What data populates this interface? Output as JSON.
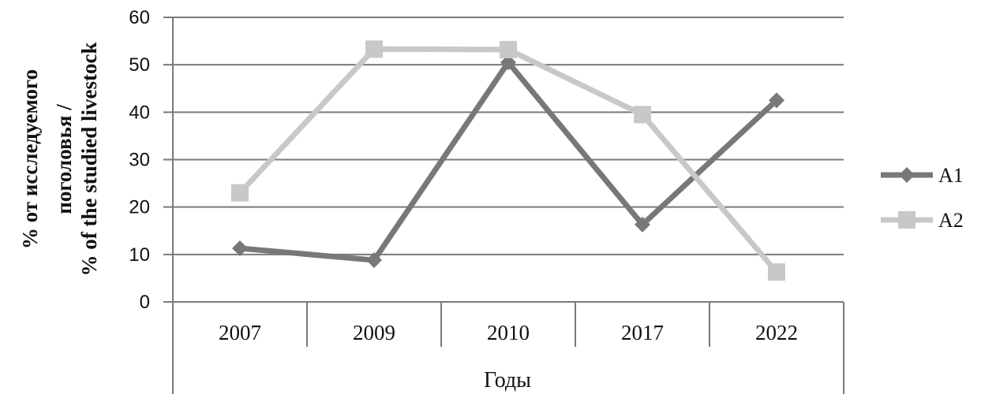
{
  "chart_data": {
    "type": "line",
    "categories": [
      "2007",
      "2009",
      "2010",
      "2017",
      "2022"
    ],
    "series": [
      {
        "name": "A1",
        "values": [
          11.3,
          8.8,
          50.5,
          16.3,
          42.5
        ],
        "color": "#787878",
        "marker": "diamond"
      },
      {
        "name": "A2",
        "values": [
          23.0,
          53.3,
          53.2,
          39.5,
          6.3
        ],
        "color": "#c8c8c8",
        "marker": "square"
      }
    ],
    "ylim": [
      0,
      60
    ],
    "yticks": [
      "0",
      "10",
      "20",
      "30",
      "40",
      "50",
      "60"
    ],
    "xlabel": "Годы",
    "ylabel_lines": [
      "% от исследуемого",
      "поголовья  /",
      "% of the studied livestock"
    ],
    "grid": true,
    "legend_position": "right"
  }
}
